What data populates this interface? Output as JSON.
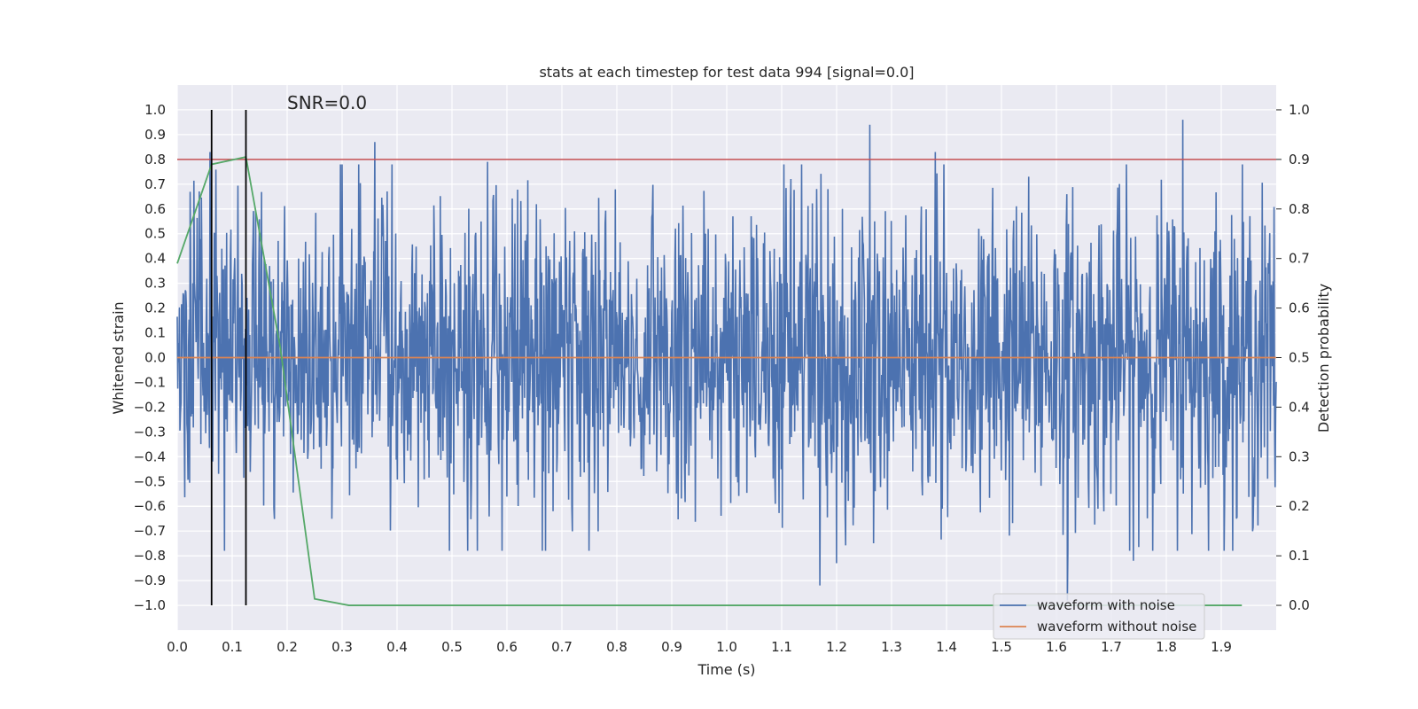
{
  "chart_data": {
    "type": "line",
    "title": "stats at each timestep for test data 994 [signal=0.0]",
    "annotation": "SNR=0.0",
    "xlabel": "Time (s)",
    "ylabel": "Whitened strain",
    "y2label": "Detection probability",
    "xlim": [
      0.0,
      2.0
    ],
    "ylim": [
      -1.1,
      1.1
    ],
    "y2lim": [
      -0.05,
      1.05
    ],
    "x_ticks": [
      0.0,
      0.1,
      0.2,
      0.3,
      0.4,
      0.5,
      0.6,
      0.7,
      0.8,
      0.9,
      1.0,
      1.1,
      1.2,
      1.3,
      1.4,
      1.5,
      1.6,
      1.7,
      1.8,
      1.9
    ],
    "x_tick_labels": [
      "0.0",
      "0.1",
      "0.2",
      "0.3",
      "0.4",
      "0.5",
      "0.6",
      "0.7",
      "0.8",
      "0.9",
      "1.0",
      "1.1",
      "1.2",
      "1.3",
      "1.4",
      "1.5",
      "1.6",
      "1.7",
      "1.8",
      "1.9"
    ],
    "y_ticks": [
      -1.0,
      -0.9,
      -0.8,
      -0.7,
      -0.6,
      -0.5,
      -0.4,
      -0.3,
      -0.2,
      -0.1,
      0.0,
      0.1,
      0.2,
      0.3,
      0.4,
      0.5,
      0.6,
      0.7,
      0.8,
      0.9,
      1.0
    ],
    "y_tick_labels": [
      "−1.0",
      "−0.9",
      "−0.8",
      "−0.7",
      "−0.6",
      "−0.5",
      "−0.4",
      "−0.3",
      "−0.2",
      "−0.1",
      "0.0",
      "0.1",
      "0.2",
      "0.3",
      "0.4",
      "0.5",
      "0.6",
      "0.7",
      "0.8",
      "0.9",
      "1.0"
    ],
    "y2_ticks": [
      0.0,
      0.1,
      0.2,
      0.3,
      0.4,
      0.5,
      0.6,
      0.7,
      0.8,
      0.9,
      1.0
    ],
    "y2_tick_labels": [
      "0.0",
      "0.1",
      "0.2",
      "0.3",
      "0.4",
      "0.5",
      "0.6",
      "0.7",
      "0.8",
      "0.9",
      "1.0"
    ],
    "grid": true,
    "legend_position": "lower-right",
    "series": [
      {
        "name": "waveform with noise",
        "axis": "left",
        "color": "#4c72b0",
        "x_start": 0.0,
        "x_end": 2.0,
        "n_points": 2048,
        "noise_std": 0.32,
        "notable_peaks": [
          {
            "x": 0.06,
            "y": 0.83
          },
          {
            "x": 0.36,
            "y": 0.87
          },
          {
            "x": 0.565,
            "y": 0.79
          },
          {
            "x": 1.26,
            "y": 0.94
          },
          {
            "x": 1.83,
            "y": 0.96
          },
          {
            "x": 1.38,
            "y": 0.83
          },
          {
            "x": 1.17,
            "y": -0.92
          },
          {
            "x": 1.62,
            "y": -0.98
          },
          {
            "x": 1.2,
            "y": -0.83
          },
          {
            "x": 1.74,
            "y": -0.82
          }
        ]
      },
      {
        "name": "waveform without noise",
        "axis": "left",
        "color": "#dd8452",
        "x": [
          0.0,
          2.0
        ],
        "y": [
          0.0,
          0.0
        ]
      },
      {
        "name": "",
        "axis": "right",
        "color": "#55a868",
        "x": [
          0.0,
          0.0625,
          0.125,
          0.1875,
          0.25,
          0.3125,
          0.375,
          0.5,
          1.0,
          1.5,
          1.9375
        ],
        "y": [
          0.69,
          0.89,
          0.905,
          0.52,
          0.013,
          0.0,
          0.0,
          0.0,
          0.0,
          0.0,
          0.0
        ]
      }
    ],
    "threshold": {
      "axis": "right",
      "y": 0.9,
      "color": "#c44e52"
    },
    "vertical_markers": [
      {
        "x": 0.0625,
        "ymin": 0.0,
        "ymax": 1.0,
        "axis": "right",
        "color": "#000000"
      },
      {
        "x": 0.125,
        "ymin": 0.0,
        "ymax": 1.0,
        "axis": "right",
        "color": "#000000"
      }
    ]
  }
}
